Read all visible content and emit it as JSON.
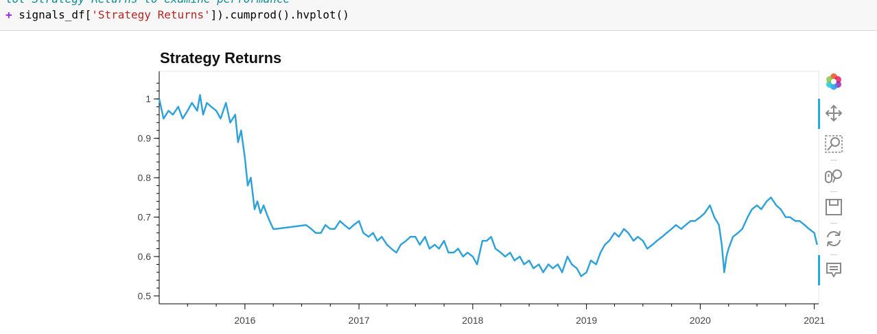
{
  "notebook": {
    "code_line_1": "lot Strategy Returns to examine performance",
    "code_line_2_prefix": "+ ",
    "code_line_2_a": "signals_df[",
    "code_line_2_str": "'Strategy Returns'",
    "code_line_2_b": "]).cumprod().hvplot()"
  },
  "toolbar": {
    "tools": [
      {
        "name": "bokeh-logo-icon"
      },
      {
        "name": "pan-tool-icon",
        "active": true
      },
      {
        "name": "box-zoom-tool-icon"
      },
      {
        "name": "wheel-zoom-tool-icon"
      },
      {
        "name": "save-tool-icon"
      },
      {
        "name": "reset-tool-icon"
      },
      {
        "name": "hover-tool-icon",
        "active": true
      }
    ],
    "accent": "#26aae1"
  },
  "chart_data": {
    "type": "line",
    "title": "Strategy Returns",
    "xlabel": "",
    "ylabel": "",
    "xlim": [
      "2015-04-01",
      "2021-01-15"
    ],
    "ylim": [
      0.48,
      1.07
    ],
    "x_ticks": [
      "2016",
      "2017",
      "2018",
      "2019",
      "2020",
      "2021"
    ],
    "y_ticks": [
      "0.5",
      "0.6",
      "0.7",
      "0.8",
      "0.9",
      "1"
    ],
    "grid": false,
    "line_color": "#30a2da",
    "series": [
      {
        "x": [
          "2015-04-01",
          "2015-04-15",
          "2015-05-01",
          "2015-05-15",
          "2015-06-01",
          "2015-06-15",
          "2015-07-01",
          "2015-07-15",
          "2015-08-01",
          "2015-08-10",
          "2015-08-20",
          "2015-09-01",
          "2015-09-15",
          "2015-10-01",
          "2015-10-15",
          "2015-11-01",
          "2015-11-15",
          "2015-12-01",
          "2015-12-10",
          "2015-12-20",
          "2016-01-01",
          "2016-01-10",
          "2016-01-20",
          "2016-02-01",
          "2016-02-10",
          "2016-02-20",
          "2016-03-01",
          "2016-03-15",
          "2016-04-01",
          "2016-04-10",
          "2016-07-15",
          "2016-08-01",
          "2016-08-15",
          "2016-09-01",
          "2016-09-15",
          "2016-10-01",
          "2016-10-15",
          "2016-11-01",
          "2016-11-15",
          "2016-12-01",
          "2016-12-15",
          "2017-01-01",
          "2017-01-15",
          "2017-02-01",
          "2017-02-15",
          "2017-03-01",
          "2017-03-15",
          "2017-04-01",
          "2017-04-15",
          "2017-05-01",
          "2017-05-15",
          "2017-06-01",
          "2017-06-15",
          "2017-07-01",
          "2017-07-15",
          "2017-08-01",
          "2017-08-15",
          "2017-09-01",
          "2017-09-15",
          "2017-10-01",
          "2017-10-15",
          "2017-11-01",
          "2017-11-15",
          "2017-12-01",
          "2017-12-15",
          "2018-01-01",
          "2018-01-15",
          "2018-02-01",
          "2018-02-15",
          "2018-03-01",
          "2018-03-15",
          "2018-04-01",
          "2018-04-15",
          "2018-05-01",
          "2018-05-15",
          "2018-06-01",
          "2018-06-15",
          "2018-07-01",
          "2018-07-15",
          "2018-08-01",
          "2018-08-15",
          "2018-09-01",
          "2018-09-15",
          "2018-10-01",
          "2018-10-15",
          "2018-11-01",
          "2018-11-15",
          "2018-12-01",
          "2018-12-15",
          "2019-01-01",
          "2019-01-15",
          "2019-02-01",
          "2019-02-15",
          "2019-03-01",
          "2019-03-15",
          "2019-04-01",
          "2019-04-15",
          "2019-05-01",
          "2019-05-15",
          "2019-06-01",
          "2019-06-15",
          "2019-07-01",
          "2019-07-15",
          "2019-08-01",
          "2019-08-15",
          "2019-09-01",
          "2019-09-15",
          "2019-10-01",
          "2019-10-15",
          "2019-11-01",
          "2019-11-15",
          "2019-12-01",
          "2019-12-15",
          "2020-01-01",
          "2020-01-15",
          "2020-02-01",
          "2020-02-15",
          "2020-03-01",
          "2020-03-10",
          "2020-03-18",
          "2020-03-25",
          "2020-04-01",
          "2020-04-15",
          "2020-05-01",
          "2020-05-15",
          "2020-06-01",
          "2020-06-15",
          "2020-07-01",
          "2020-07-15",
          "2020-08-01",
          "2020-08-15",
          "2020-09-01",
          "2020-09-15",
          "2020-10-01",
          "2020-10-15",
          "2020-11-01",
          "2020-11-15",
          "2020-12-01",
          "2020-12-15",
          "2021-01-01",
          "2021-01-10"
        ],
        "values": [
          1.0,
          0.95,
          0.97,
          0.96,
          0.98,
          0.95,
          0.97,
          0.99,
          0.97,
          1.01,
          0.96,
          0.99,
          0.98,
          0.97,
          0.95,
          0.99,
          0.94,
          0.96,
          0.89,
          0.92,
          0.85,
          0.78,
          0.8,
          0.72,
          0.74,
          0.71,
          0.73,
          0.7,
          0.67,
          0.67,
          0.68,
          0.67,
          0.66,
          0.66,
          0.68,
          0.67,
          0.67,
          0.69,
          0.68,
          0.67,
          0.68,
          0.69,
          0.66,
          0.65,
          0.66,
          0.64,
          0.65,
          0.63,
          0.62,
          0.61,
          0.63,
          0.64,
          0.65,
          0.65,
          0.63,
          0.65,
          0.62,
          0.63,
          0.62,
          0.64,
          0.61,
          0.61,
          0.62,
          0.6,
          0.61,
          0.6,
          0.58,
          0.64,
          0.64,
          0.65,
          0.62,
          0.61,
          0.6,
          0.61,
          0.59,
          0.6,
          0.58,
          0.59,
          0.57,
          0.58,
          0.56,
          0.58,
          0.57,
          0.58,
          0.56,
          0.6,
          0.58,
          0.57,
          0.55,
          0.56,
          0.59,
          0.58,
          0.61,
          0.63,
          0.64,
          0.66,
          0.65,
          0.67,
          0.66,
          0.64,
          0.65,
          0.64,
          0.62,
          0.63,
          0.64,
          0.65,
          0.66,
          0.67,
          0.68,
          0.67,
          0.68,
          0.69,
          0.69,
          0.7,
          0.71,
          0.73,
          0.7,
          0.68,
          0.63,
          0.56,
          0.6,
          0.62,
          0.65,
          0.66,
          0.67,
          0.7,
          0.72,
          0.73,
          0.72,
          0.74,
          0.75,
          0.73,
          0.72,
          0.7,
          0.7,
          0.69,
          0.69,
          0.68,
          0.67,
          0.66,
          0.63
        ]
      }
    ]
  }
}
